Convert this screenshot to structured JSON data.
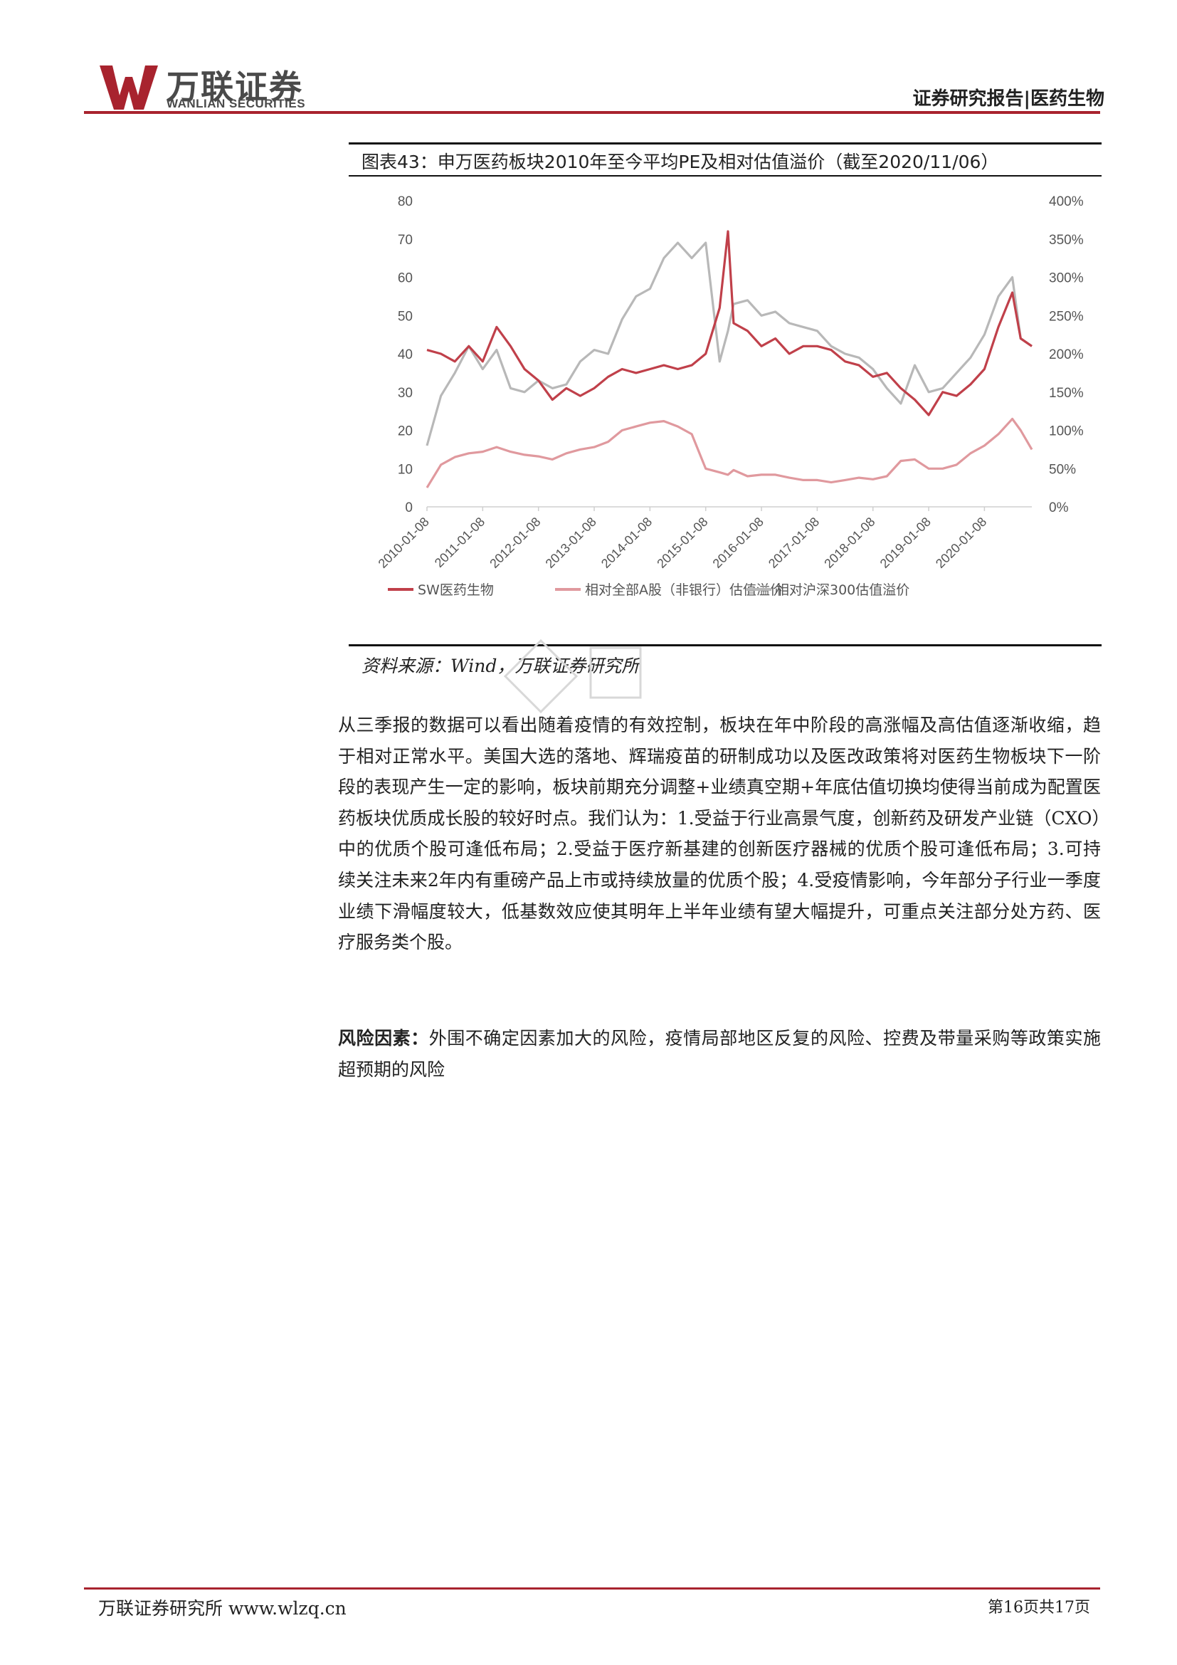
{
  "header": {
    "logo_cn": "万联证券",
    "logo_en": "WANLIAN SECURITIES",
    "report_tag": "证券研究报告|医药生物",
    "brand_color": "#a8232e"
  },
  "figure": {
    "title": "图表43：申万医药板块2010年至今平均PE及相对估值溢价（截至2020/11/06）",
    "source": "资料来源：Wind，万联证券研究所"
  },
  "chart_data": {
    "type": "line",
    "x_ticks": [
      "2010-01-08",
      "2011-01-08",
      "2012-01-08",
      "2013-01-08",
      "2014-01-08",
      "2015-01-08",
      "2016-01-08",
      "2017-01-08",
      "2018-01-08",
      "2019-01-08",
      "2020-01-08"
    ],
    "y_left_ticks": [
      "0",
      "10",
      "20",
      "30",
      "40",
      "50",
      "60",
      "70",
      "80"
    ],
    "y_right_ticks": [
      "0%",
      "50%",
      "100%",
      "150%",
      "200%",
      "250%",
      "300%",
      "350%",
      "400%"
    ],
    "ylim_left": [
      0,
      80
    ],
    "ylim_right": [
      0,
      4
    ],
    "grid": false,
    "legend_position": "bottom",
    "x": [
      2010.0,
      2010.25,
      2010.5,
      2010.75,
      2011.0,
      2011.25,
      2011.5,
      2011.75,
      2012.0,
      2012.25,
      2012.5,
      2012.75,
      2013.0,
      2013.25,
      2013.5,
      2013.75,
      2014.0,
      2014.25,
      2014.5,
      2014.75,
      2015.0,
      2015.25,
      2015.4,
      2015.5,
      2015.75,
      2016.0,
      2016.25,
      2016.5,
      2016.75,
      2017.0,
      2017.25,
      2017.5,
      2017.75,
      2018.0,
      2018.25,
      2018.5,
      2018.75,
      2019.0,
      2019.25,
      2019.5,
      2019.75,
      2020.0,
      2020.25,
      2020.5,
      2020.65,
      2020.85
    ],
    "series": [
      {
        "name": "SW医药生物",
        "axis": "left",
        "color": "#c0404a",
        "values": [
          41,
          40,
          38,
          42,
          38,
          47,
          42,
          36,
          33,
          28,
          31,
          29,
          31,
          34,
          36,
          35,
          36,
          37,
          36,
          37,
          40,
          52,
          72,
          48,
          46,
          42,
          44,
          40,
          42,
          42,
          41,
          38,
          37,
          34,
          35,
          31,
          28,
          24,
          30,
          29,
          32,
          36,
          47,
          56,
          44,
          42
        ]
      },
      {
        "name": "相对全部A股（非银行）估值溢价",
        "axis": "right",
        "color": "#e0999e",
        "values": [
          0.25,
          0.55,
          0.65,
          0.7,
          0.72,
          0.78,
          0.72,
          0.68,
          0.66,
          0.62,
          0.7,
          0.75,
          0.78,
          0.85,
          1.0,
          1.05,
          1.1,
          1.12,
          1.05,
          0.95,
          0.5,
          0.45,
          0.42,
          0.48,
          0.4,
          0.42,
          0.42,
          0.38,
          0.35,
          0.35,
          0.32,
          0.35,
          0.38,
          0.36,
          0.4,
          0.6,
          0.62,
          0.5,
          0.5,
          0.55,
          0.7,
          0.8,
          0.95,
          1.15,
          1.0,
          0.75
        ]
      },
      {
        "name": "相对沪深300估值溢价",
        "axis": "right",
        "color": "#b8b8b8",
        "values": [
          0.8,
          1.45,
          1.75,
          2.1,
          1.8,
          2.05,
          1.55,
          1.5,
          1.65,
          1.55,
          1.6,
          1.9,
          2.05,
          2.0,
          2.45,
          2.75,
          2.85,
          3.25,
          3.45,
          3.25,
          3.45,
          1.9,
          2.3,
          2.65,
          2.7,
          2.5,
          2.55,
          2.4,
          2.35,
          2.3,
          2.1,
          2.0,
          1.95,
          1.8,
          1.55,
          1.35,
          1.85,
          1.5,
          1.55,
          1.75,
          1.95,
          2.25,
          2.75,
          3.0,
          2.2,
          2.1
        ]
      }
    ]
  },
  "body": {
    "paragraph": "从三季报的数据可以看出随着疫情的有效控制，板块在年中阶段的高涨幅及高估值逐渐收缩，趋于相对正常水平。美国大选的落地、辉瑞疫苗的研制成功以及医改政策将对医药生物板块下一阶段的表现产生一定的影响，板块前期充分调整+业绩真空期+年底估值切换均使得当前成为配置医药板块优质成长股的较好时点。我们认为：1.受益于行业高景气度，创新药及研发产业链（CXO）中的优质个股可逢低布局；2.受益于医疗新基建的创新医疗器械的优质个股可逢低布局；3.可持续关注未来2年内有重磅产品上市或持续放量的优质个股；4.受疫情影响，今年部分子行业一季度业绩下滑幅度较大，低基数效应使其明年上半年业绩有望大幅提升，可重点关注部分处方药、医疗服务类个股。",
    "risk_label": "风险因素：",
    "risk_text": "外围不确定因素加大的风险，疫情局部地区反复的风险、控费及带量采购等政策实施超预期的风险"
  },
  "footer": {
    "left": "万联证券研究所 www.wlzq.cn",
    "page": "第16页共17页"
  }
}
